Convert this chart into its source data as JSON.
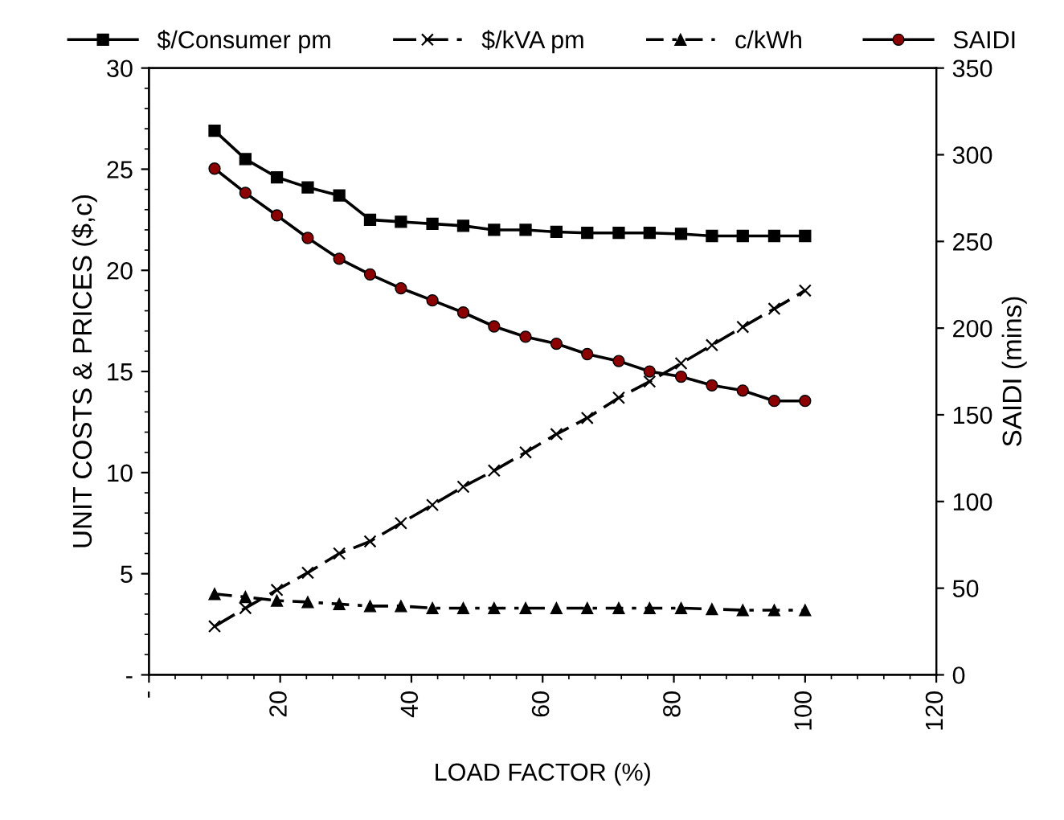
{
  "chart_data": {
    "type": "line",
    "xlabel": "LOAD FACTOR (%)",
    "ylabel": "UNIT COSTS & PRICES ($,c)",
    "y2label": "SAIDI (mins)",
    "x": [
      10,
      14.7,
      19.5,
      24.2,
      29,
      33.7,
      38.4,
      43.2,
      47.9,
      52.6,
      57.4,
      62.1,
      66.8,
      71.6,
      76.3,
      81.1,
      85.8,
      90.5,
      95.3,
      100
    ],
    "series": [
      {
        "name": "$/Consumer pm",
        "color": "#000000",
        "marker": "square",
        "line_style": "solid",
        "values": [
          26.9,
          25.5,
          24.6,
          24.1,
          23.7,
          22.5,
          22.4,
          22.3,
          22.2,
          22.0,
          22.0,
          21.9,
          21.85,
          21.85,
          21.85,
          21.8,
          21.7,
          21.7,
          21.7,
          21.7
        ]
      },
      {
        "name": "$/kVA pm",
        "color": "#000000",
        "marker": "cross",
        "line_style": "dashed",
        "values": [
          2.4,
          3.3,
          4.2,
          5.05,
          6.0,
          6.6,
          7.5,
          8.4,
          9.3,
          10.1,
          11.0,
          11.9,
          12.7,
          13.7,
          14.5,
          15.4,
          16.3,
          17.2,
          18.1,
          19.0
        ]
      },
      {
        "name": "c/kWh",
        "color": "#000000",
        "marker": "triangle",
        "line_style": "dashdot",
        "values": [
          4.0,
          3.85,
          3.67,
          3.6,
          3.5,
          3.4,
          3.4,
          3.3,
          3.3,
          3.3,
          3.3,
          3.3,
          3.3,
          3.3,
          3.3,
          3.3,
          3.25,
          3.2,
          3.2,
          3.2
        ]
      },
      {
        "name": "SAIDI",
        "color": "#8b0000",
        "marker": "circle",
        "line_style": "solid",
        "axis": "y2",
        "values": [
          292,
          278,
          265,
          252,
          240,
          231,
          223,
          216,
          209,
          201,
          195,
          191,
          185,
          181,
          175,
          172,
          167,
          164,
          158,
          158
        ]
      }
    ],
    "xlim": [
      0,
      120
    ],
    "xticks": [
      {
        "value": 0,
        "label": "-"
      },
      20,
      40,
      60,
      80,
      100,
      120
    ],
    "ylim": [
      0,
      30
    ],
    "yticks": [
      {
        "value": 0,
        "label": "-"
      },
      5,
      10,
      15,
      20,
      25,
      30
    ],
    "y2lim": [
      0,
      350
    ],
    "y2ticks": [
      0,
      50,
      100,
      150,
      200,
      250,
      300,
      350
    ],
    "grid": false,
    "legend": "top"
  }
}
